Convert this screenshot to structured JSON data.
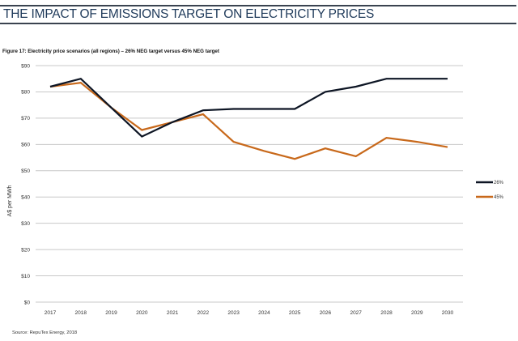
{
  "header": {
    "title": "THE IMPACT OF EMISSIONS TARGET ON ELECTRICITY PRICES"
  },
  "figure": {
    "caption": "Figure 17: Electricity price scenarios (all regions) – 26% NEG target versus 45% NEG target",
    "source": "Source: RepuTex Energy, 2018"
  },
  "chart_data": {
    "type": "line",
    "title": "Electricity price scenarios (all regions) – 26% NEG target versus 45% NEG target",
    "xlabel": "",
    "ylabel": "A$ per MWh",
    "x": [
      "2017",
      "2018",
      "2019",
      "2020",
      "2021",
      "2022",
      "2023",
      "2024",
      "2025",
      "2026",
      "2027",
      "2028",
      "2029",
      "2030"
    ],
    "ylim": [
      0,
      90
    ],
    "yticks": [
      0,
      10,
      20,
      30,
      40,
      50,
      60,
      70,
      80,
      90
    ],
    "ytick_labels": [
      "$0",
      "$10",
      "$20",
      "$30",
      "$40",
      "$50",
      "$60",
      "$70",
      "$80",
      "$90"
    ],
    "grid": true,
    "legend_position": "right",
    "series": [
      {
        "name": "26%",
        "color": "#0d1524",
        "values": [
          82,
          85,
          74,
          63,
          68.5,
          73,
          73.5,
          73.5,
          73.5,
          80,
          82,
          85,
          85,
          85
        ]
      },
      {
        "name": "45%",
        "color": "#c8691b",
        "values": [
          82,
          83.5,
          74,
          65.5,
          68.5,
          71.5,
          61,
          57.5,
          54.5,
          58.5,
          55.5,
          62.5,
          61,
          59
        ]
      }
    ]
  }
}
